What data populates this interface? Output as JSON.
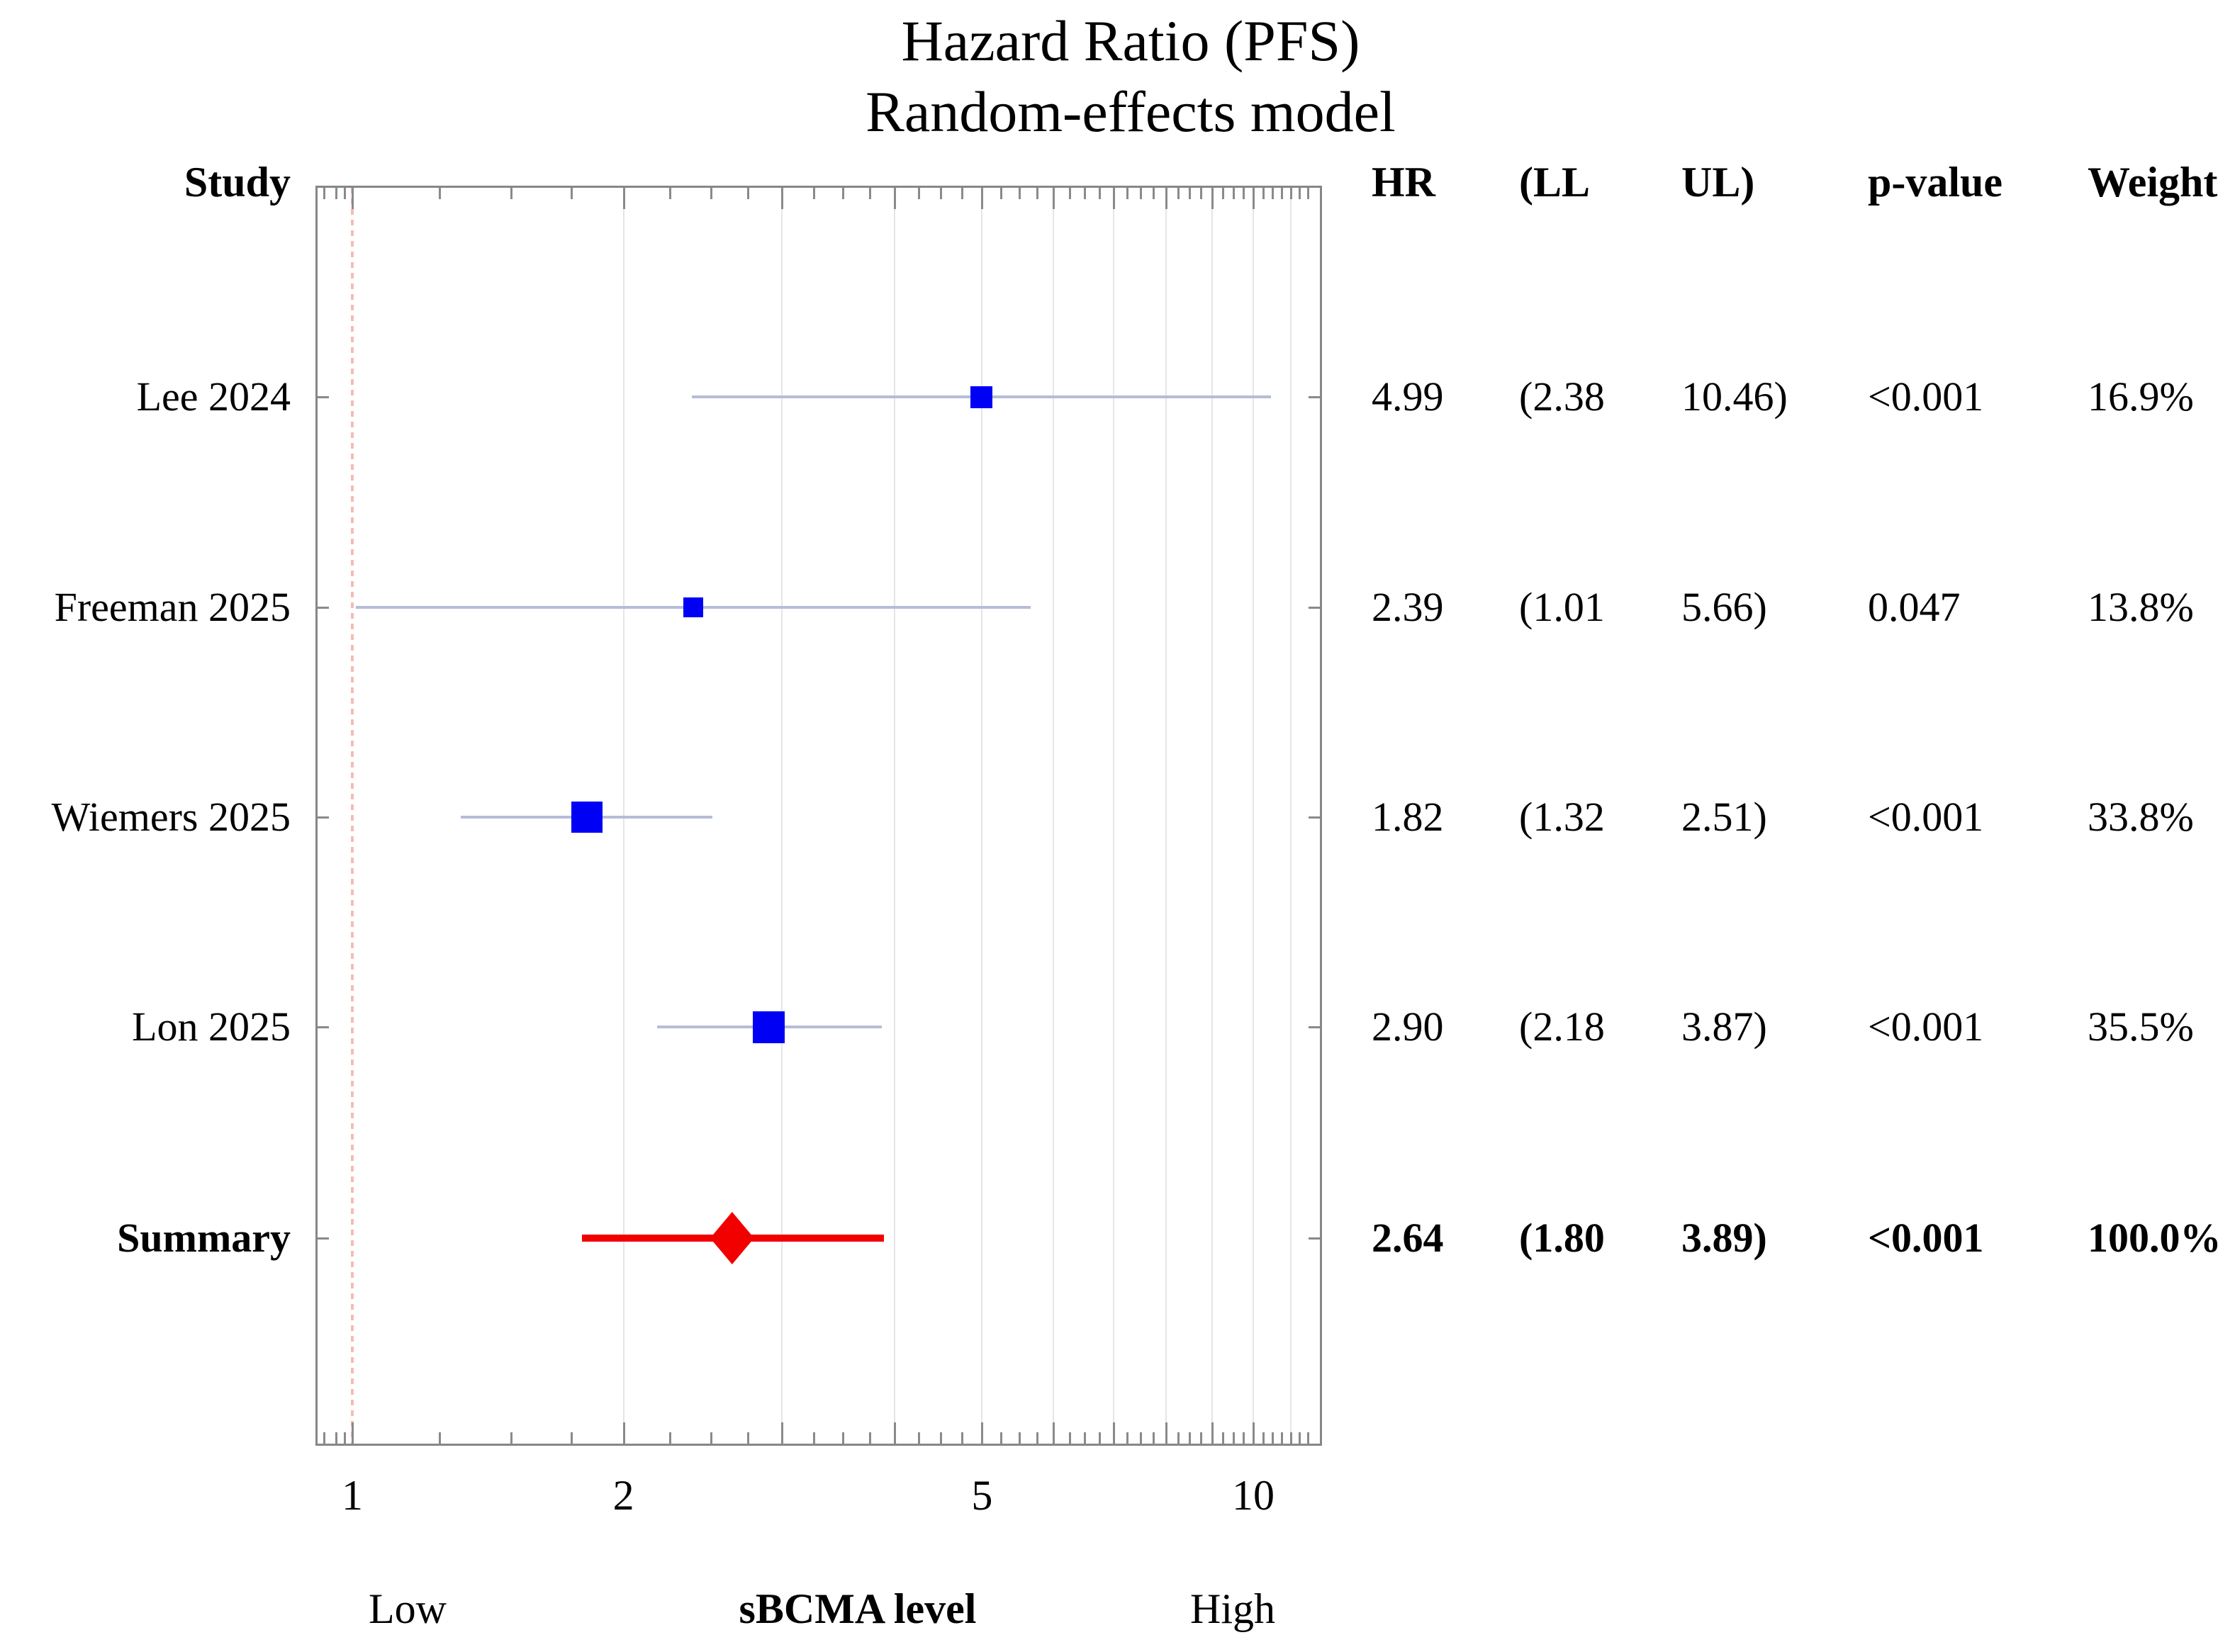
{
  "title": {
    "line1": "Hazard Ratio (PFS)",
    "line2": "Random-effects model"
  },
  "columns": {
    "study": "Study",
    "hr": "HR",
    "ll": "(LL",
    "ul": "UL)",
    "p": "p-value",
    "weight": "Weight"
  },
  "xlabel": {
    "low": "Low",
    "mid": "sBCMA level",
    "high": "High"
  },
  "colors": {
    "study_marker": "#0000f5",
    "ci_line": "#b6bcd8",
    "summary": "#f20000",
    "reference_line": "#f5bcb4",
    "gridline": "#e5e5e5",
    "frame": "#878787",
    "tick": "#8a8a8a"
  },
  "chart_data": {
    "type": "forest",
    "x_scale": "log10",
    "xlim": [
      0.91,
      11.9
    ],
    "axis": {
      "labeled_ticks": [
        1,
        2,
        5,
        10
      ],
      "long_ticks": [
        1,
        2,
        3,
        4,
        5,
        6,
        7,
        8,
        9,
        10
      ],
      "minor_ticks": [
        0.93,
        0.96,
        0.98,
        1.25,
        1.5,
        1.75,
        2.25,
        2.5,
        2.75,
        3.25,
        3.5,
        3.75,
        4.25,
        4.5,
        4.75,
        5.25,
        5.5,
        5.75,
        6.25,
        6.5,
        6.75,
        7.25,
        7.5,
        7.75,
        8.25,
        8.5,
        8.75,
        9.25,
        9.5,
        9.75,
        10.25,
        10.5,
        10.75,
        11,
        11.25,
        11.5
      ],
      "gridlines": [
        2,
        3,
        4,
        5,
        6,
        7,
        8,
        9,
        10,
        11
      ],
      "reference_value": 1
    },
    "studies": [
      {
        "label": "Lee 2024",
        "hr": 4.99,
        "ll": 2.38,
        "ul": 10.46,
        "hr_text": "4.99",
        "ll_text": "(2.38",
        "ul_text": "10.46)",
        "p": "<0.001",
        "weight": "16.9%",
        "weight_pct": 16.9
      },
      {
        "label": "Freeman 2025",
        "hr": 2.39,
        "ll": 1.01,
        "ul": 5.66,
        "hr_text": "2.39",
        "ll_text": "(1.01",
        "ul_text": "5.66)",
        "p": "0.047",
        "weight": "13.8%",
        "weight_pct": 13.8
      },
      {
        "label": "Wiemers 2025",
        "hr": 1.82,
        "ll": 1.32,
        "ul": 2.51,
        "hr_text": "1.82",
        "ll_text": "(1.32",
        "ul_text": "2.51)",
        "p": "<0.001",
        "weight": "33.8%",
        "weight_pct": 33.8
      },
      {
        "label": "Lon 2025",
        "hr": 2.9,
        "ll": 2.18,
        "ul": 3.87,
        "hr_text": "2.90",
        "ll_text": "(2.18",
        "ul_text": "3.87)",
        "p": "<0.001",
        "weight": "35.5%",
        "weight_pct": 35.5
      }
    ],
    "summary": {
      "label": "Summary",
      "hr": 2.64,
      "ll": 1.8,
      "ul": 3.89,
      "hr_text": "2.64",
      "ll_text": "(1.80",
      "ul_text": "3.89)",
      "p": "<0.001",
      "weight": "100.0%",
      "weight_pct": 100.0
    }
  }
}
